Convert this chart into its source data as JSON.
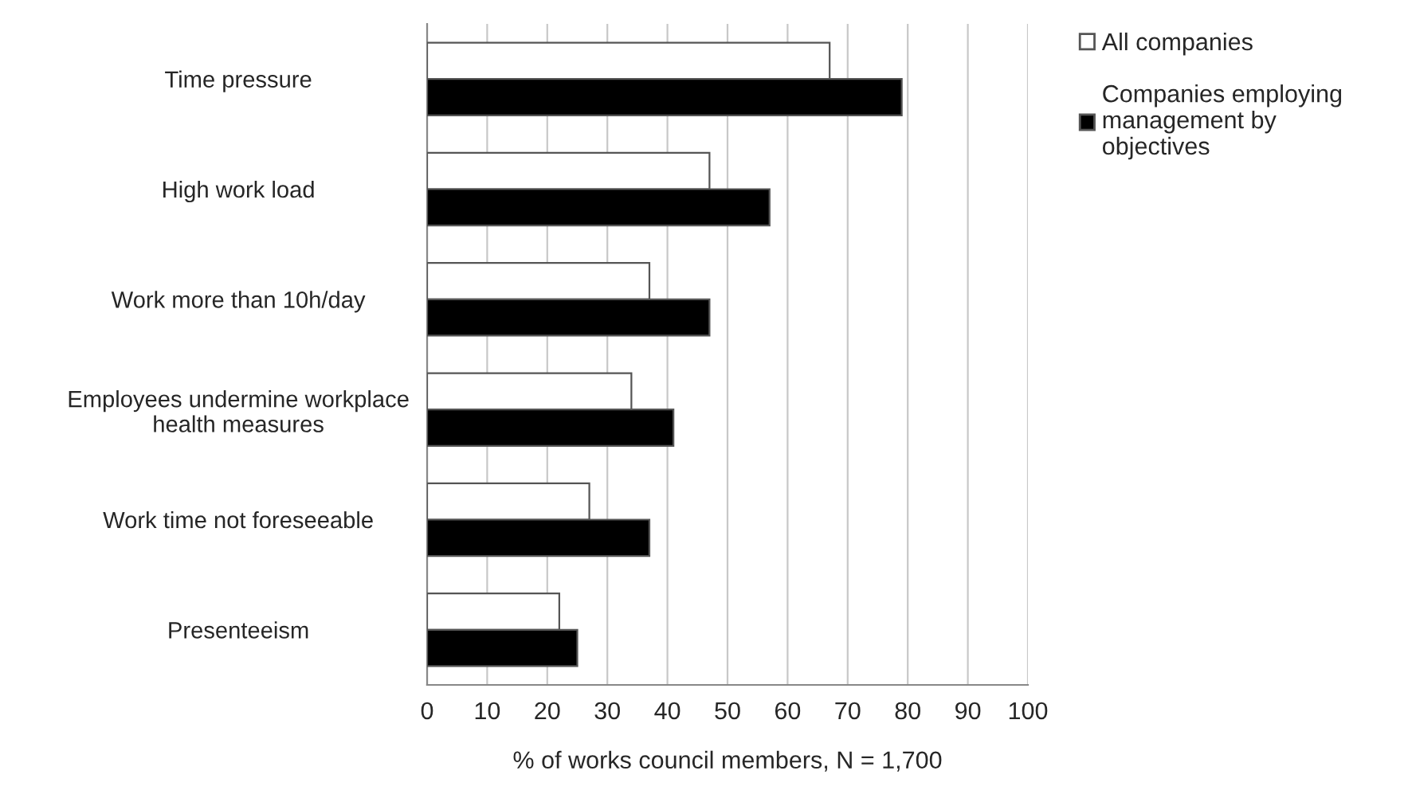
{
  "chart_data": {
    "type": "bar",
    "orientation": "horizontal",
    "xlabel": "% of works council members, N = 1,700",
    "categories": [
      "Time pressure",
      "High work load",
      "Work more than 10h/day",
      "Employees undermine workplace\nhealth measures",
      "Work time not foreseeable",
      "Presenteeism"
    ],
    "series": [
      {
        "name": "All companies",
        "color": "#ffffff",
        "values": [
          67,
          47,
          37,
          34,
          27,
          22
        ]
      },
      {
        "name": "Companies employing\nmanagement by\nobjectives",
        "color": "#000000",
        "values": [
          79,
          57,
          47,
          41,
          37,
          25
        ]
      }
    ],
    "xlim": [
      0,
      100
    ],
    "xticks": [
      0,
      10,
      20,
      30,
      40,
      50,
      60,
      70,
      80,
      90,
      100
    ],
    "grid": "x",
    "legend": "top right"
  }
}
